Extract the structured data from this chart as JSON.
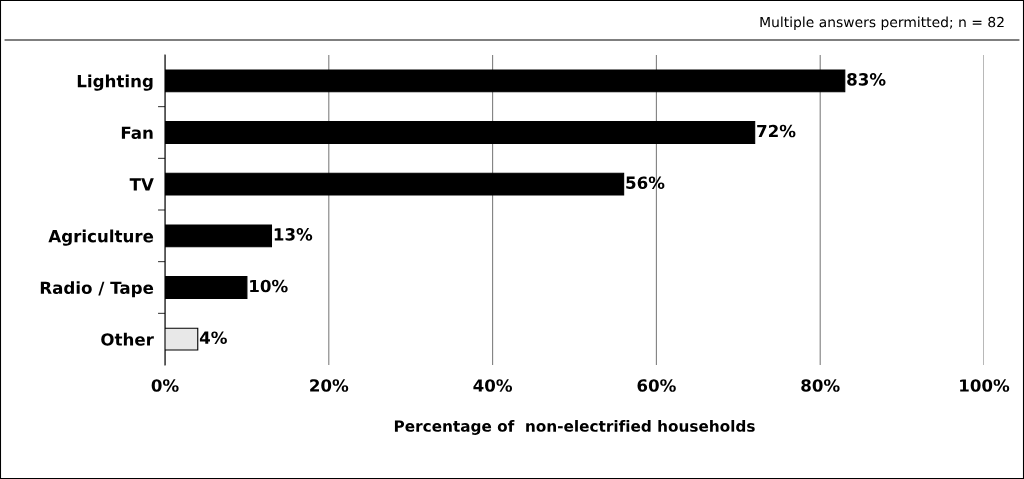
{
  "chart_data": {
    "type": "bar",
    "orientation": "horizontal",
    "categories": [
      "Lighting",
      "Fan",
      "TV",
      "Agriculture",
      "Radio / Tape",
      "Other"
    ],
    "values": [
      83,
      72,
      56,
      13,
      10,
      4
    ],
    "colors": [
      "#000000",
      "#000000",
      "#000000",
      "#000000",
      "#000000",
      "#e8e8e8"
    ],
    "value_labels": [
      "83%",
      "72%",
      "56%",
      "13%",
      "10%",
      "4%"
    ],
    "xlim": [
      0,
      100
    ],
    "xticks": [
      {
        "value": 0,
        "label": "0%"
      },
      {
        "value": 20,
        "label": "20%"
      },
      {
        "value": 40,
        "label": "40%"
      },
      {
        "value": 60,
        "label": "60%"
      },
      {
        "value": 80,
        "label": "80%"
      },
      {
        "value": 100,
        "label": "100%"
      }
    ],
    "xlabel": "Percentage of  non-electrified households",
    "annotations": [
      "Multiple answers permitted; n = 82"
    ],
    "grid": "x",
    "legend": false
  }
}
